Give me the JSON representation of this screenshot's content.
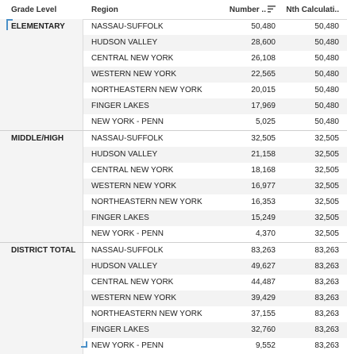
{
  "header": {
    "grade_level": "Grade Level",
    "region": "Region",
    "number": "Number ..",
    "nth": "Nth Calculati.."
  },
  "sort_icon": "sort-descending-icon",
  "groups": [
    {
      "grade": "ELEMENTARY",
      "rows": [
        {
          "region": "NASSAU-SUFFOLK",
          "number": "50,480",
          "nth": "50,480"
        },
        {
          "region": "HUDSON VALLEY",
          "number": "28,600",
          "nth": "50,480"
        },
        {
          "region": "CENTRAL NEW YORK",
          "number": "26,108",
          "nth": "50,480"
        },
        {
          "region": "WESTERN NEW YORK",
          "number": "22,565",
          "nth": "50,480"
        },
        {
          "region": "NORTHEASTERN NEW YORK",
          "number": "20,015",
          "nth": "50,480"
        },
        {
          "region": "FINGER LAKES",
          "number": "17,969",
          "nth": "50,480"
        },
        {
          "region": "NEW YORK - PENN",
          "number": "5,025",
          "nth": "50,480"
        }
      ]
    },
    {
      "grade": "MIDDLE/HIGH",
      "rows": [
        {
          "region": "NASSAU-SUFFOLK",
          "number": "32,505",
          "nth": "32,505"
        },
        {
          "region": "HUDSON VALLEY",
          "number": "21,158",
          "nth": "32,505"
        },
        {
          "region": "CENTRAL NEW YORK",
          "number": "18,168",
          "nth": "32,505"
        },
        {
          "region": "WESTERN NEW YORK",
          "number": "16,977",
          "nth": "32,505"
        },
        {
          "region": "NORTHEASTERN NEW YORK",
          "number": "16,353",
          "nth": "32,505"
        },
        {
          "region": "FINGER LAKES",
          "number": "15,249",
          "nth": "32,505"
        },
        {
          "region": "NEW YORK - PENN",
          "number": "4,370",
          "nth": "32,505"
        }
      ]
    },
    {
      "grade": "DISTRICT TOTAL",
      "rows": [
        {
          "region": "NASSAU-SUFFOLK",
          "number": "83,263",
          "nth": "83,263"
        },
        {
          "region": "HUDSON VALLEY",
          "number": "49,627",
          "nth": "83,263"
        },
        {
          "region": "CENTRAL NEW YORK",
          "number": "44,487",
          "nth": "83,263"
        },
        {
          "region": "WESTERN NEW YORK",
          "number": "39,429",
          "nth": "83,263"
        },
        {
          "region": "NORTHEASTERN NEW YORK",
          "number": "37,155",
          "nth": "83,263"
        },
        {
          "region": "FINGER LAKES",
          "number": "32,760",
          "nth": "83,263"
        },
        {
          "region": "NEW YORK - PENN",
          "number": "9,552",
          "nth": "83,263"
        }
      ]
    }
  ]
}
